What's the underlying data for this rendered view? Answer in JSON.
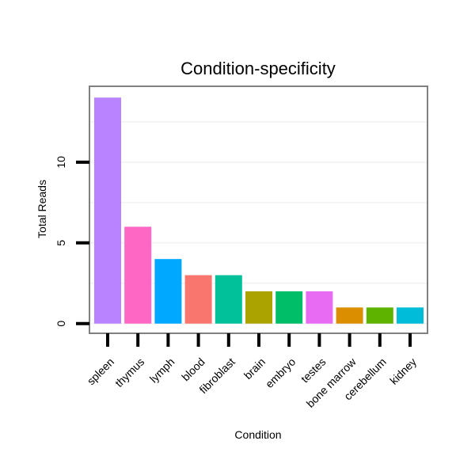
{
  "chart_data": {
    "type": "bar",
    "title": "Condition-specificity",
    "xlabel": "Condition",
    "ylabel": "Total Reads",
    "categories": [
      "spleen",
      "thymus",
      "lymph",
      "blood",
      "fibroblast",
      "brain",
      "embryo",
      "testes",
      "bone marrow",
      "cerebellum",
      "kidney"
    ],
    "values": [
      14,
      6,
      4,
      3,
      3,
      2,
      2,
      2,
      1,
      1,
      1
    ],
    "colors": [
      "#B983FF",
      "#FF67C5",
      "#00A9FF",
      "#F8766D",
      "#00C19A",
      "#ABA300",
      "#00BE67",
      "#E76BF3",
      "#DB8E00",
      "#5EB300",
      "#00BCD8"
    ],
    "yticks": [
      0,
      5,
      10
    ],
    "ylim": [
      -0.6,
      14.7
    ],
    "grid": true
  }
}
